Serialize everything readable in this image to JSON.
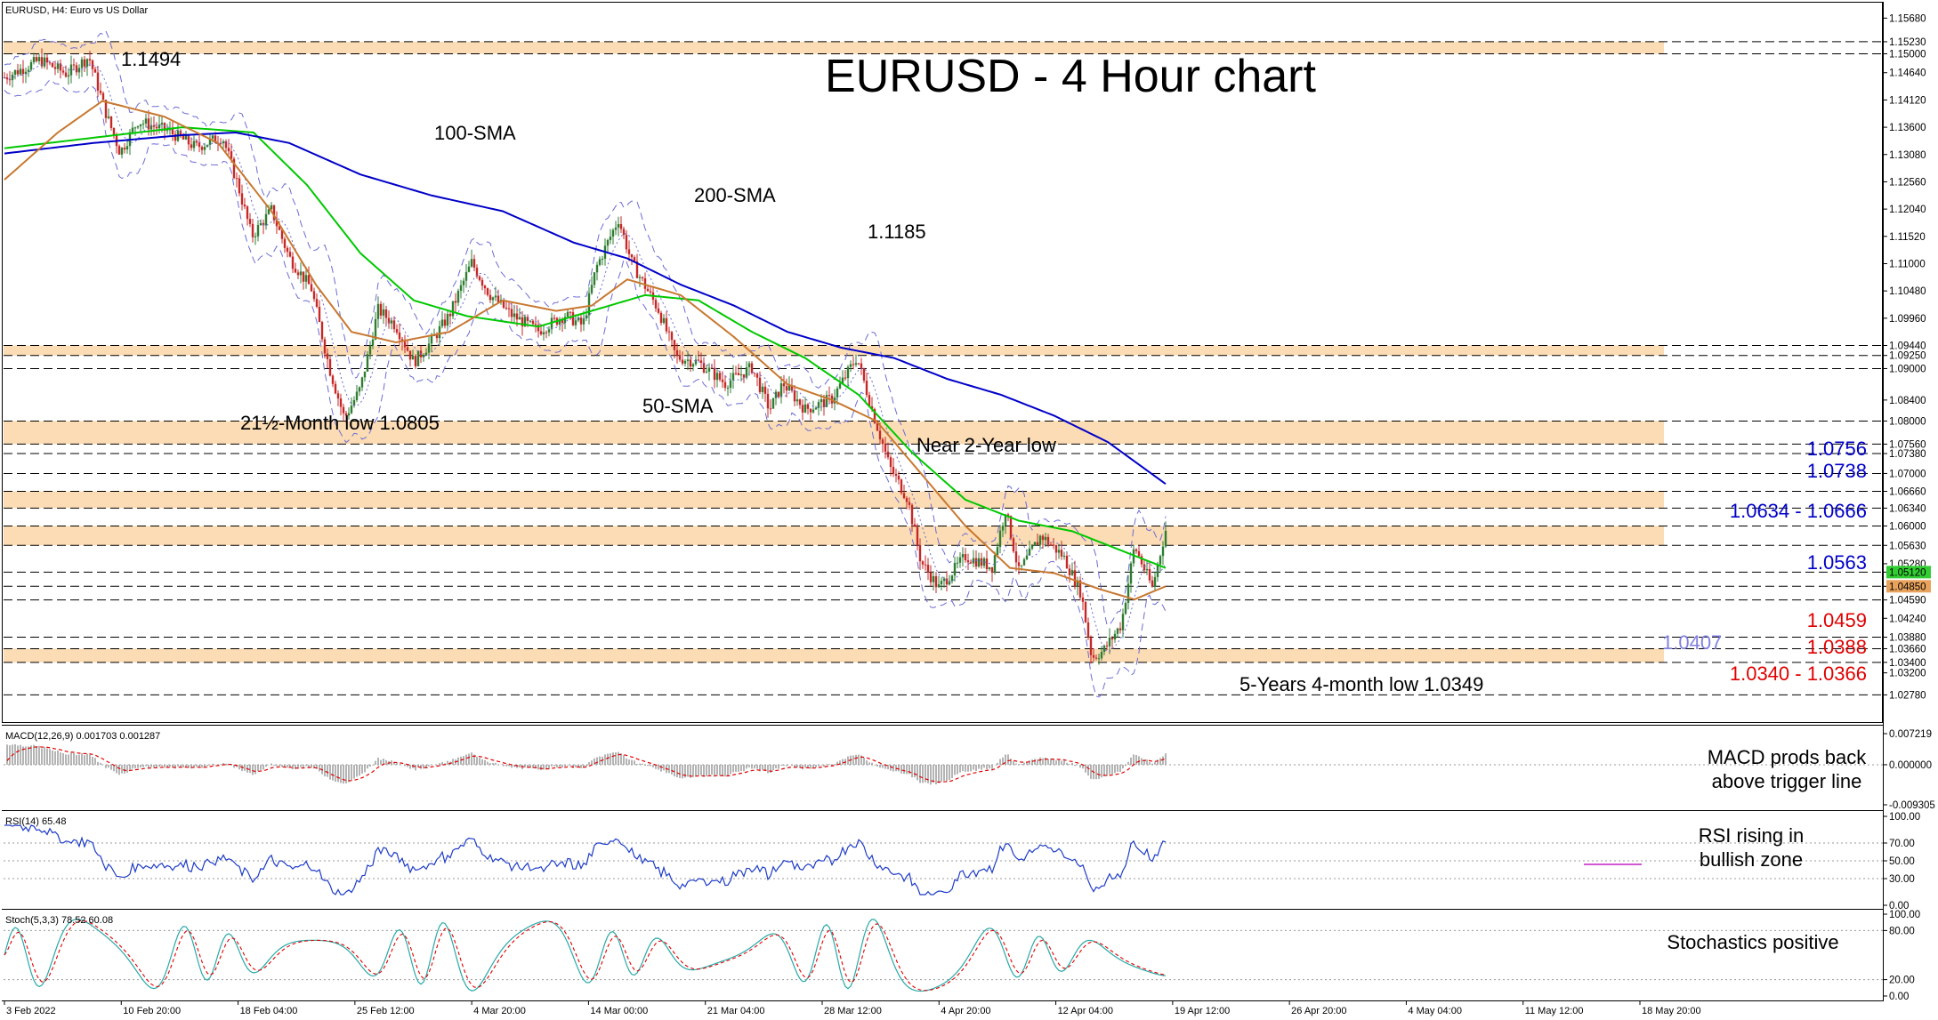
{
  "chart_data": {
    "type": "line",
    "symbol_label": "EURUSD, H4:  Euro vs US Dollar",
    "title": "EURUSD - 4 Hour chart",
    "ylim": [
      1.0238,
      1.1589
    ],
    "price_ticks": [
      "1.15680",
      "1.15230",
      "1.15000",
      "1.14640",
      "1.14120",
      "1.13600",
      "1.13080",
      "1.12560",
      "1.12040",
      "1.11520",
      "1.11000",
      "1.10480",
      "1.09960",
      "1.09440",
      "1.09250",
      "1.09000",
      "1.08400",
      "1.08000",
      "1.07560",
      "1.07380",
      "1.07000",
      "1.06660",
      "1.06340",
      "1.06000",
      "1.05630",
      "1.05280",
      "1.05120",
      "1.04850",
      "1.04590",
      "1.04240",
      "1.03880",
      "1.03660",
      "1.03400",
      "1.03200",
      "1.02780"
    ],
    "highlight_ticks": [
      {
        "value": "1.05120",
        "color": "#32cd32"
      },
      {
        "value": "1.04850",
        "color": "#e8a25c"
      }
    ],
    "x_labels": [
      "3 Feb 2022",
      "10 Feb 20:00",
      "18 Feb 04:00",
      "25 Feb 12:00",
      "4 Mar 20:00",
      "14 Mar 00:00",
      "21 Mar 04:00",
      "28 Mar 12:00",
      "4 Apr 20:00",
      "12 Apr 04:00",
      "19 Apr 12:00",
      "26 Apr 20:00",
      "4 May 04:00",
      "11 May 12:00",
      "18 May 20:00"
    ],
    "price_anchors": [
      [
        0,
        1.1455
      ],
      [
        40,
        1.1488
      ],
      [
        70,
        1.1462
      ],
      [
        95,
        1.1494
      ],
      [
        115,
        1.1382
      ],
      [
        130,
        1.1312
      ],
      [
        150,
        1.1372
      ],
      [
        185,
        1.1352
      ],
      [
        215,
        1.1322
      ],
      [
        245,
        1.1342
      ],
      [
        262,
        1.1252
      ],
      [
        278,
        1.1152
      ],
      [
        300,
        1.1202
      ],
      [
        320,
        1.1112
      ],
      [
        345,
        1.1052
      ],
      [
        365,
        1.0902
      ],
      [
        382,
        1.0805
      ],
      [
        400,
        1.0862
      ],
      [
        420,
        1.1012
      ],
      [
        440,
        1.0982
      ],
      [
        460,
        1.0912
      ],
      [
        480,
        1.0952
      ],
      [
        500,
        1.1002
      ],
      [
        525,
        1.1102
      ],
      [
        545,
        1.1042
      ],
      [
        570,
        1.1002
      ],
      [
        600,
        1.0972
      ],
      [
        630,
        1.1002
      ],
      [
        650,
        1.0982
      ],
      [
        665,
        1.1092
      ],
      [
        690,
        1.1185
      ],
      [
        705,
        1.1102
      ],
      [
        735,
        1.1012
      ],
      [
        755,
        1.0922
      ],
      [
        780,
        1.0912
      ],
      [
        810,
        1.0872
      ],
      [
        840,
        1.0902
      ],
      [
        860,
        1.0822
      ],
      [
        875,
        1.0872
      ],
      [
        900,
        1.0822
      ],
      [
        930,
        1.0842
      ],
      [
        958,
        1.0922
      ],
      [
        975,
        1.0822
      ],
      [
        995,
        1.0712
      ],
      [
        1015,
        1.0652
      ],
      [
        1030,
        1.0532
      ],
      [
        1050,
        1.0482
      ],
      [
        1080,
        1.0542
      ],
      [
        1110,
        1.0522
      ],
      [
        1125,
        1.0632
      ],
      [
        1140,
        1.0512
      ],
      [
        1165,
        1.0582
      ],
      [
        1190,
        1.0542
      ],
      [
        1210,
        1.0472
      ],
      [
        1222,
        1.0349
      ],
      [
        1235,
        1.0362
      ],
      [
        1255,
        1.0412
      ],
      [
        1270,
        1.0562
      ],
      [
        1290,
        1.0482
      ],
      [
        1305,
        1.0592
      ]
    ],
    "series": [
      {
        "name": "100-SMA",
        "color": "#00c800",
        "values": [
          [
            0,
            1.132
          ],
          [
            100,
            1.134
          ],
          [
            200,
            1.136
          ],
          [
            280,
            1.135
          ],
          [
            340,
            1.125
          ],
          [
            400,
            1.112
          ],
          [
            460,
            1.103
          ],
          [
            520,
            1.1
          ],
          [
            600,
            1.098
          ],
          [
            660,
            1.101
          ],
          [
            720,
            1.104
          ],
          [
            780,
            1.103
          ],
          [
            840,
            1.097
          ],
          [
            900,
            1.092
          ],
          [
            960,
            1.085
          ],
          [
            1020,
            1.074
          ],
          [
            1080,
            1.065
          ],
          [
            1140,
            1.061
          ],
          [
            1200,
            1.059
          ],
          [
            1260,
            1.055
          ],
          [
            1305,
            1.052
          ]
        ]
      },
      {
        "name": "200-SMA",
        "color": "#0000c8",
        "values": [
          [
            0,
            1.131
          ],
          [
            100,
            1.133
          ],
          [
            200,
            1.1345
          ],
          [
            260,
            1.135
          ],
          [
            320,
            1.133
          ],
          [
            400,
            1.127
          ],
          [
            480,
            1.123
          ],
          [
            560,
            1.12
          ],
          [
            640,
            1.114
          ],
          [
            700,
            1.111
          ],
          [
            760,
            1.106
          ],
          [
            820,
            1.102
          ],
          [
            880,
            1.097
          ],
          [
            940,
            1.094
          ],
          [
            1000,
            1.092
          ],
          [
            1060,
            1.088
          ],
          [
            1120,
            1.085
          ],
          [
            1180,
            1.081
          ],
          [
            1240,
            1.076
          ],
          [
            1305,
            1.068
          ]
        ]
      },
      {
        "name": "50-SMA",
        "color": "#c87830",
        "values": [
          [
            0,
            1.126
          ],
          [
            60,
            1.135
          ],
          [
            110,
            1.141
          ],
          [
            180,
            1.138
          ],
          [
            240,
            1.133
          ],
          [
            300,
            1.12
          ],
          [
            350,
            1.106
          ],
          [
            390,
            1.097
          ],
          [
            440,
            1.095
          ],
          [
            500,
            1.097
          ],
          [
            560,
            1.103
          ],
          [
            620,
            1.101
          ],
          [
            660,
            1.102
          ],
          [
            700,
            1.107
          ],
          [
            760,
            1.104
          ],
          [
            820,
            1.096
          ],
          [
            880,
            1.087
          ],
          [
            930,
            1.084
          ],
          [
            980,
            1.08
          ],
          [
            1030,
            1.07
          ],
          [
            1080,
            1.06
          ],
          [
            1130,
            1.052
          ],
          [
            1180,
            1.051
          ],
          [
            1230,
            1.048
          ],
          [
            1270,
            1.046
          ],
          [
            1305,
            1.0485
          ]
        ]
      }
    ],
    "zones": [
      [
        1.15,
        1.1523
      ],
      [
        1.0925,
        1.0944
      ],
      [
        1.0756,
        1.08
      ],
      [
        1.0634,
        1.0666
      ],
      [
        1.0563,
        1.06
      ],
      [
        1.034,
        1.0366
      ]
    ],
    "dashed_levels": [
      1.1523,
      1.15,
      1.0944,
      1.0925,
      1.09,
      1.08,
      1.0756,
      1.0738,
      1.07,
      1.0666,
      1.0634,
      1.06,
      1.0563,
      1.0512,
      1.0485,
      1.0459,
      1.0388,
      1.0366,
      1.034,
      1.0278
    ],
    "annotations": [
      {
        "text": "1.1494",
        "color": "#000000"
      },
      {
        "text": "100-SMA",
        "color": "#00c800"
      },
      {
        "text": "200-SMA",
        "color": "#0000c8"
      },
      {
        "text": "1.1185",
        "color": "#000000"
      },
      {
        "text": "21½-Month low 1.0805",
        "color": "#000000"
      },
      {
        "text": "50-SMA",
        "color": "#c87830"
      },
      {
        "text": "Near 2-Year low",
        "color": "#000000"
      },
      {
        "text": "5-Years 4-month low 1.0349",
        "color": "#000000"
      }
    ],
    "level_labels": [
      {
        "text": "1.0756",
        "color": "#0000c8"
      },
      {
        "text": "1.0738",
        "color": "#0000c8"
      },
      {
        "text": "1.0634 - 1.0666",
        "color": "#0000c8"
      },
      {
        "text": "1.0563",
        "color": "#0000c8"
      },
      {
        "text": "1.0459",
        "color": "#e00000"
      },
      {
        "text": "1.0407",
        "color": "#8080e0"
      },
      {
        "text": "1.0388",
        "color": "#e00000"
      },
      {
        "text": "1.0340 - 1.0366",
        "color": "#e00000"
      }
    ],
    "macd": {
      "label": "MACD(12,26,9) 0.001703 0.001287",
      "ticks": [
        "0.007219",
        "0.000000",
        "-0.009305"
      ],
      "comment": [
        "MACD prods back",
        "above trigger line"
      ]
    },
    "rsi": {
      "label": "RSI(14) 65.48",
      "ticks": [
        "100.00",
        "70.00",
        "50.00",
        "30.00",
        "0.00"
      ],
      "comment": [
        "RSI rising in",
        "bullish zone"
      ]
    },
    "stoch": {
      "label": "Stoch(5,3,3) 78.52 60.08",
      "ticks": [
        "100.00",
        "80.00",
        "20.00",
        "0.00"
      ],
      "comment": [
        "Stochastics positive"
      ]
    }
  }
}
